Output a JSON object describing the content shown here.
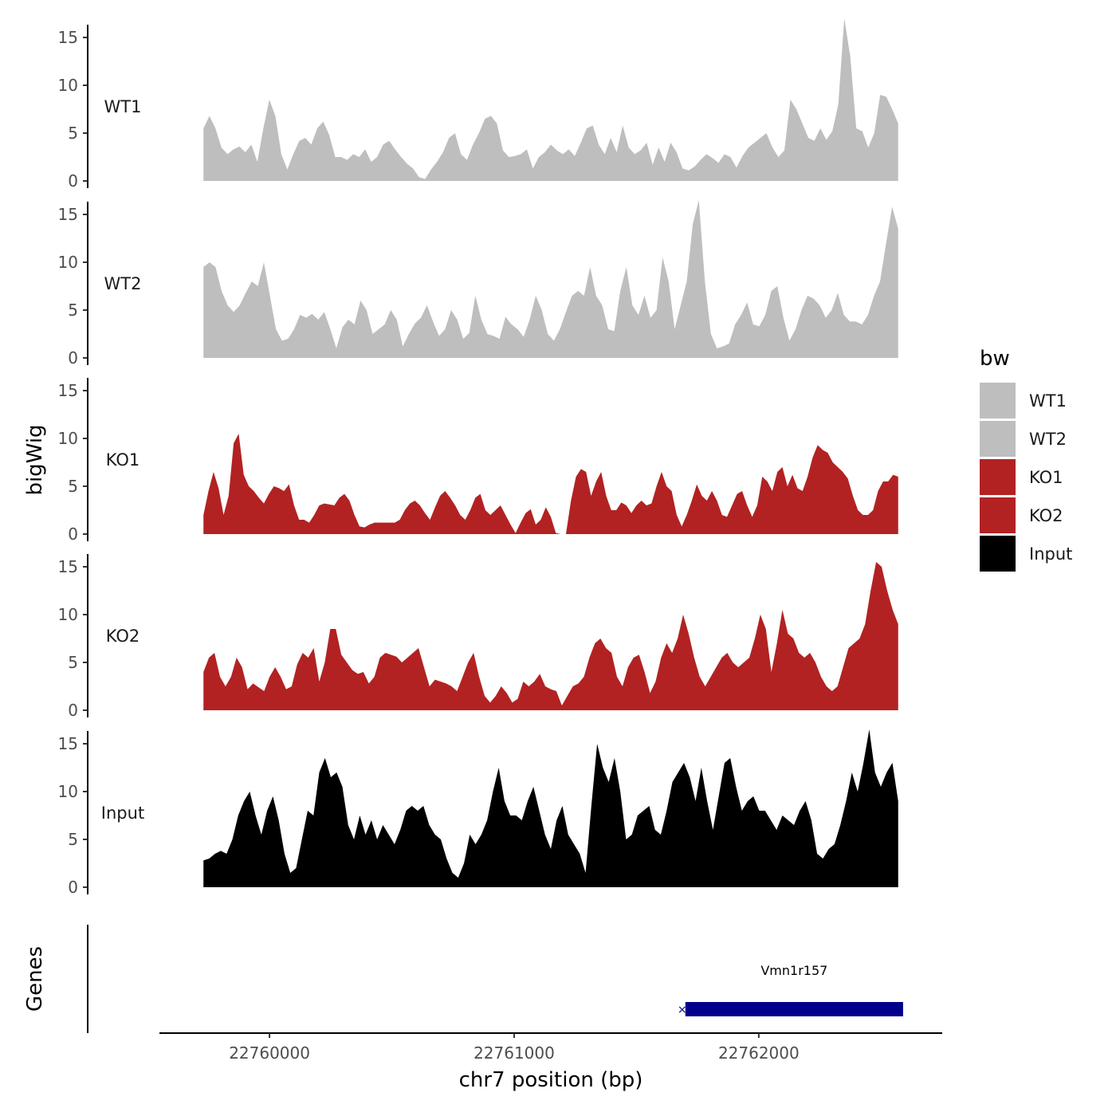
{
  "chart_data": {
    "type": "area",
    "title": "",
    "xlabel": "chr7 position (bp)",
    "ylabel": "bigWig",
    "genes_label": "Genes",
    "xlim": [
      22759550,
      22762750
    ],
    "x_range": [
      22759730,
      22762570
    ],
    "x_ticks": [
      22760000,
      22761000,
      22762000
    ],
    "x_tick_labels": [
      "22760000",
      "22761000",
      "22762000"
    ],
    "ylim": [
      0,
      17.5
    ],
    "y_ticks": [
      0,
      5,
      10,
      15
    ],
    "y_tick_labels": [
      "0",
      "5",
      "10",
      "15"
    ],
    "legend": {
      "title": "bw",
      "position": "right",
      "entries": [
        {
          "label": "WT1",
          "color": "#bebebe"
        },
        {
          "label": "WT2",
          "color": "#bebebe"
        },
        {
          "label": "KO1",
          "color": "#b22222"
        },
        {
          "label": "KO2",
          "color": "#b22222"
        },
        {
          "label": "Input",
          "color": "#000000"
        }
      ]
    },
    "series": [
      {
        "name": "WT1",
        "color": "#bebebe",
        "values": [
          5.5,
          6.8,
          5.5,
          3.5,
          2.8,
          3.3,
          3.6,
          3.0,
          3.8,
          2.0,
          5.5,
          8.5,
          6.8,
          2.8,
          1.2,
          2.8,
          4.2,
          4.5,
          3.8,
          5.5,
          6.2,
          4.8,
          2.5,
          2.5,
          2.2,
          2.8,
          2.5,
          3.3,
          2.0,
          2.5,
          3.8,
          4.2,
          3.3,
          2.5,
          1.8,
          1.3,
          0.4,
          0.2,
          1.2,
          2.0,
          3.0,
          4.5,
          5.0,
          2.8,
          2.2,
          3.8,
          5.0,
          6.5,
          6.8,
          6.0,
          3.2,
          2.5,
          2.6,
          2.8,
          3.3,
          1.3,
          2.5,
          3.0,
          3.8,
          3.2,
          2.8,
          3.3,
          2.6,
          4.0,
          5.5,
          5.8,
          3.8,
          2.8,
          4.5,
          3.0,
          5.8,
          3.5,
          2.8,
          3.2,
          4.0,
          1.7,
          3.5,
          2.0,
          4.0,
          3.0,
          1.3,
          1.1,
          1.5,
          2.2,
          2.8,
          2.4,
          1.9,
          2.8,
          2.5,
          1.4,
          2.6,
          3.5,
          4.0,
          4.5,
          5.0,
          3.5,
          2.5,
          3.2,
          8.5,
          7.5,
          6.0,
          4.5,
          4.2,
          5.5,
          4.3,
          5.2,
          8.0,
          17.0,
          13.0,
          5.5,
          5.2,
          3.5,
          5.0,
          9.0,
          8.8,
          7.5,
          6.0
        ]
      },
      {
        "name": "WT2",
        "color": "#bebebe",
        "values": [
          9.5,
          10.0,
          9.5,
          7.0,
          5.5,
          4.8,
          5.5,
          6.8,
          8.0,
          7.5,
          10.0,
          6.5,
          3.0,
          1.8,
          2.0,
          3.0,
          4.5,
          4.2,
          4.6,
          4.0,
          4.8,
          3.0,
          1.0,
          3.2,
          4.0,
          3.5,
          6.0,
          5.0,
          2.5,
          3.0,
          3.5,
          5.0,
          4.0,
          1.2,
          2.5,
          3.6,
          4.2,
          5.5,
          3.8,
          2.3,
          3.0,
          5.0,
          4.0,
          2.0,
          2.6,
          6.5,
          4.0,
          2.5,
          2.3,
          2.0,
          4.3,
          3.5,
          3.0,
          2.2,
          4.0,
          6.5,
          5.0,
          2.5,
          1.8,
          3.0,
          4.8,
          6.5,
          7.0,
          6.5,
          9.5,
          6.5,
          5.5,
          3.0,
          2.8,
          7.0,
          9.5,
          5.5,
          4.5,
          6.5,
          4.2,
          5.0,
          10.5,
          8.0,
          3.0,
          5.5,
          8.0,
          14.0,
          16.5,
          8.0,
          2.5,
          1.0,
          1.2,
          1.5,
          3.5,
          4.5,
          5.8,
          3.5,
          3.3,
          4.5,
          7.0,
          7.5,
          4.2,
          1.8,
          3.0,
          5.0,
          6.5,
          6.2,
          5.5,
          4.2,
          5.0,
          6.8,
          4.5,
          3.8,
          3.8,
          3.5,
          4.5,
          6.5,
          8.0,
          12.0,
          15.8,
          13.5
        ]
      },
      {
        "name": "KO1",
        "color": "#b22222",
        "values": [
          2.0,
          4.5,
          6.5,
          4.8,
          2.0,
          4.0,
          9.5,
          10.5,
          6.2,
          5.0,
          4.5,
          3.8,
          3.2,
          4.2,
          5.0,
          4.8,
          4.5,
          5.2,
          3.0,
          1.5,
          1.5,
          1.2,
          2.0,
          3.0,
          3.2,
          3.1,
          3.0,
          3.8,
          4.2,
          3.5,
          2.0,
          0.8,
          0.7,
          1.0,
          1.2,
          1.2,
          1.2,
          1.2,
          1.2,
          1.5,
          2.5,
          3.2,
          3.5,
          3.0,
          2.2,
          1.5,
          2.8,
          4.0,
          4.5,
          3.8,
          3.0,
          2.0,
          1.5,
          2.5,
          3.8,
          4.2,
          2.5,
          2.0,
          2.5,
          3.0,
          2.0,
          1.0,
          0.1,
          1.2,
          2.2,
          2.6,
          1.0,
          1.5,
          2.8,
          1.8,
          0.1,
          0,
          0,
          3.5,
          6.0,
          6.8,
          6.5,
          4.0,
          5.5,
          6.5,
          4.0,
          2.5,
          2.5,
          3.3,
          3.0,
          2.2,
          3.0,
          3.5,
          3.0,
          3.2,
          5.0,
          6.5,
          5.0,
          4.5,
          2.0,
          0.8,
          2.0,
          3.5,
          5.2,
          4.0,
          3.5,
          4.5,
          3.5,
          2.0,
          1.8,
          3.0,
          4.2,
          4.5,
          3.0,
          1.8,
          3.0,
          6.0,
          5.5,
          4.5,
          6.5,
          7.0,
          5.0,
          6.2,
          4.8,
          4.5,
          6.0,
          8.0,
          9.3,
          8.8,
          8.5,
          7.5,
          7.0,
          6.5,
          5.8,
          4.0,
          2.5,
          2.0,
          2.0,
          2.5,
          4.5,
          5.5,
          5.5,
          6.2,
          6.0
        ]
      },
      {
        "name": "KO2",
        "color": "#b22222",
        "values": [
          4.0,
          5.5,
          6.0,
          3.5,
          2.5,
          3.5,
          5.5,
          4.5,
          2.2,
          2.8,
          2.4,
          2.0,
          3.5,
          4.5,
          3.5,
          2.2,
          2.5,
          4.8,
          6.0,
          5.5,
          6.5,
          3.0,
          5.0,
          8.5,
          8.5,
          5.8,
          5.0,
          4.2,
          3.8,
          4.0,
          2.8,
          3.5,
          5.5,
          6.0,
          5.8,
          5.6,
          5.0,
          5.5,
          6.0,
          6.5,
          4.5,
          2.5,
          3.2,
          3.0,
          2.8,
          2.5,
          2.0,
          3.5,
          5.0,
          6.0,
          3.5,
          1.5,
          0.8,
          1.5,
          2.5,
          1.8,
          0.8,
          1.2,
          3.0,
          2.5,
          3.0,
          3.8,
          2.5,
          2.2,
          2.0,
          0.5,
          1.5,
          2.5,
          2.8,
          3.5,
          5.5,
          7.0,
          7.5,
          6.5,
          6.0,
          3.5,
          2.5,
          4.5,
          5.5,
          5.8,
          4.0,
          1.8,
          3.0,
          5.5,
          7.0,
          6.0,
          7.5,
          10.0,
          8.0,
          5.5,
          3.5,
          2.5,
          3.5,
          4.5,
          5.5,
          6.0,
          5.0,
          4.5,
          5.0,
          5.5,
          7.5,
          10.0,
          8.5,
          4.0,
          7.0,
          10.5,
          8.0,
          7.5,
          6.0,
          5.5,
          6.0,
          5.0,
          3.5,
          2.5,
          2.0,
          2.5,
          4.5,
          6.5,
          7.0,
          7.5,
          9.0,
          12.5,
          15.5,
          15.0,
          12.5,
          10.5,
          9.0
        ]
      },
      {
        "name": "Input",
        "color": "#000000",
        "values": [
          2.8,
          3.0,
          3.5,
          3.8,
          3.5,
          5.0,
          7.5,
          9.0,
          10.0,
          7.5,
          5.5,
          8.0,
          9.5,
          7.0,
          3.5,
          1.5,
          2.0,
          5.0,
          8.0,
          7.5,
          12.0,
          13.5,
          11.5,
          12.0,
          10.5,
          6.5,
          5.0,
          7.5,
          5.5,
          7.0,
          5.0,
          6.5,
          5.5,
          4.5,
          6.0,
          8.0,
          8.5,
          8.0,
          8.5,
          6.5,
          5.5,
          5.0,
          3.0,
          1.5,
          1.0,
          2.5,
          5.5,
          4.5,
          5.5,
          7.0,
          10.0,
          12.5,
          9.0,
          7.5,
          7.5,
          7.0,
          9.0,
          10.5,
          8.0,
          5.5,
          4.0,
          7.0,
          8.5,
          5.5,
          4.5,
          3.5,
          1.5,
          8.5,
          15.0,
          12.5,
          11.0,
          13.5,
          10.0,
          5.0,
          5.5,
          7.5,
          8.0,
          8.5,
          6.0,
          5.5,
          8.0,
          11.0,
          12.0,
          13.0,
          11.5,
          9.0,
          12.5,
          9.0,
          6.0,
          9.5,
          13.0,
          13.5,
          10.5,
          8.0,
          9.0,
          9.5,
          8.0,
          8.0,
          7.0,
          6.0,
          7.5,
          7.0,
          6.5,
          8.0,
          9.0,
          7.0,
          3.5,
          3.0,
          4.0,
          4.5,
          6.5,
          9.0,
          12.0,
          10.0,
          13.0,
          16.5,
          12.0,
          10.5,
          12.0,
          13.0,
          9.0
        ]
      }
    ],
    "gene": {
      "name": "Vmn1r157",
      "start": 22761700,
      "end": 22762590,
      "strand": "-",
      "color": "#00008b"
    }
  }
}
